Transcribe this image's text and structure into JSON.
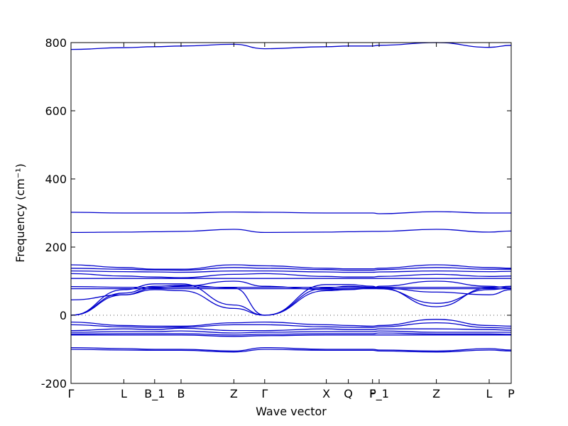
{
  "chart_data": {
    "type": "line",
    "xlabel": "Wave vector",
    "ylabel": "Frequency (cm⁻¹)",
    "ylim": [
      -200,
      800
    ],
    "yticks": [
      -200,
      0,
      200,
      400,
      600,
      800
    ],
    "grid": false,
    "legend": "none",
    "line_color": "#0000cc",
    "zero_line_color": "#555555",
    "x_positions": [
      0,
      0.12,
      0.19,
      0.25,
      0.37,
      0.44,
      0.58,
      0.63,
      0.685,
      0.7,
      0.83,
      0.95,
      1.0
    ],
    "xtick_labels": [
      "Γ",
      "L",
      "B_1",
      "B",
      "Z",
      "Γ",
      "X",
      "Q",
      "F",
      "P_1",
      "Z",
      "L",
      "P"
    ],
    "series": [
      {
        "values": [
          780,
          785,
          788,
          790,
          795,
          782,
          788,
          790,
          790,
          792,
          800,
          786,
          792
        ]
      },
      {
        "values": [
          302,
          300,
          300,
          300,
          303,
          302,
          300,
          300,
          300,
          298,
          304,
          300,
          300
        ]
      },
      {
        "values": [
          243,
          244,
          245,
          246,
          252,
          243,
          244,
          245,
          246,
          246,
          252,
          244,
          247
        ]
      },
      {
        "values": [
          148,
          140,
          135,
          135,
          148,
          145,
          138,
          136,
          136,
          138,
          148,
          140,
          138
        ]
      },
      {
        "values": [
          138,
          135,
          133,
          132,
          140,
          138,
          134,
          132,
          132,
          134,
          140,
          135,
          135
        ]
      },
      {
        "values": [
          130,
          128,
          127,
          126,
          130,
          130,
          127,
          126,
          126,
          127,
          130,
          128,
          129
        ]
      },
      {
        "values": [
          122,
          115,
          112,
          110,
          120,
          122,
          114,
          112,
          112,
          114,
          120,
          114,
          115
        ]
      },
      {
        "values": [
          108,
          108,
          108,
          108,
          108,
          108,
          108,
          108,
          108,
          108,
          108,
          108,
          108
        ]
      },
      {
        "values": [
          84,
          82,
          82,
          82,
          82,
          82,
          82,
          82,
          82,
          82,
          82,
          82,
          84
        ]
      },
      {
        "values": [
          78,
          78,
          78,
          78,
          78,
          78,
          78,
          78,
          78,
          78,
          78,
          78,
          78
        ]
      },
      {
        "values": [
          0,
          75,
          92,
          92,
          30,
          0,
          90,
          90,
          85,
          80,
          25,
          80,
          85
        ]
      },
      {
        "values": [
          0,
          60,
          75,
          72,
          20,
          0,
          72,
          75,
          80,
          78,
          35,
          75,
          80
        ]
      },
      {
        "values": [
          45,
          60,
          80,
          85,
          100,
          85,
          75,
          78,
          80,
          85,
          100,
          85,
          80
        ]
      },
      {
        "values": [
          0,
          65,
          85,
          88,
          80,
          0,
          80,
          85,
          82,
          80,
          68,
          60,
          75
        ]
      },
      {
        "values": [
          -20,
          -30,
          -32,
          -32,
          -22,
          -20,
          -28,
          -30,
          -32,
          -30,
          -12,
          -30,
          -32
        ]
      },
      {
        "values": [
          -28,
          -34,
          -36,
          -35,
          -28,
          -28,
          -34,
          -35,
          -36,
          -34,
          -22,
          -36,
          -38
        ]
      },
      {
        "values": [
          -45,
          -40,
          -42,
          -38,
          -45,
          -45,
          -40,
          -42,
          -42,
          -40,
          -40,
          -42,
          -44
        ]
      },
      {
        "values": [
          -50,
          -48,
          -48,
          -46,
          -52,
          -50,
          -48,
          -48,
          -48,
          -46,
          -50,
          -50,
          -50
        ]
      },
      {
        "values": [
          -55,
          -54,
          -54,
          -54,
          -58,
          -56,
          -54,
          -54,
          -54,
          -52,
          -55,
          -55,
          -56
        ]
      },
      {
        "values": [
          -58,
          -58,
          -58,
          -58,
          -62,
          -60,
          -58,
          -58,
          -58,
          -58,
          -58,
          -58,
          -58
        ]
      },
      {
        "values": [
          -95,
          -98,
          -100,
          -100,
          -105,
          -95,
          -100,
          -100,
          -100,
          -102,
          -105,
          -98,
          -102
        ]
      },
      {
        "values": [
          -100,
          -102,
          -103,
          -103,
          -108,
          -100,
          -103,
          -103,
          -103,
          -105,
          -108,
          -102,
          -105
        ]
      }
    ]
  }
}
